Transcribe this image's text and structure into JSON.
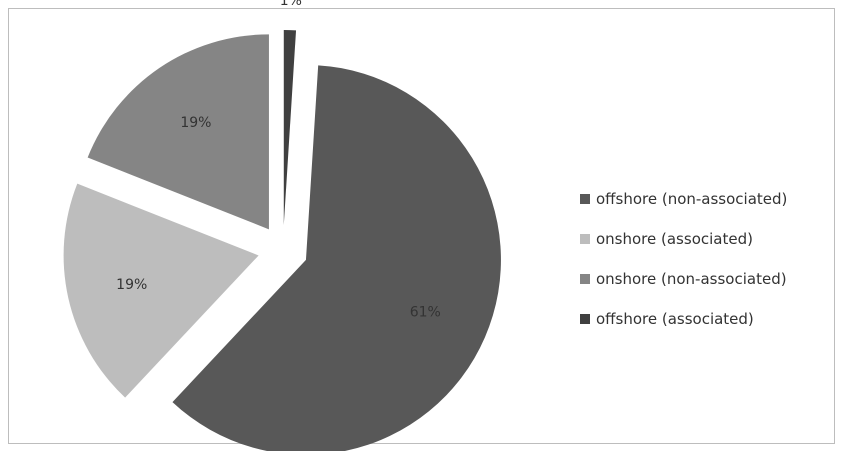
{
  "chart_data": {
    "type": "pie",
    "title": "",
    "legend_position": "right",
    "slices": [
      {
        "name": "offshore (non-associated)",
        "value": 61,
        "label": "61%",
        "color": "#585858",
        "exploded": true
      },
      {
        "name": "onshore (associated)",
        "value": 19,
        "label": "19%",
        "color": "#bdbdbd",
        "exploded": true
      },
      {
        "name": "onshore (non-associated)",
        "value": 19,
        "label": "19%",
        "color": "#858585",
        "exploded": true
      },
      {
        "name": "offshore (associated)",
        "value": 1,
        "label": "1%",
        "color": "#404040",
        "exploded": true
      }
    ]
  }
}
